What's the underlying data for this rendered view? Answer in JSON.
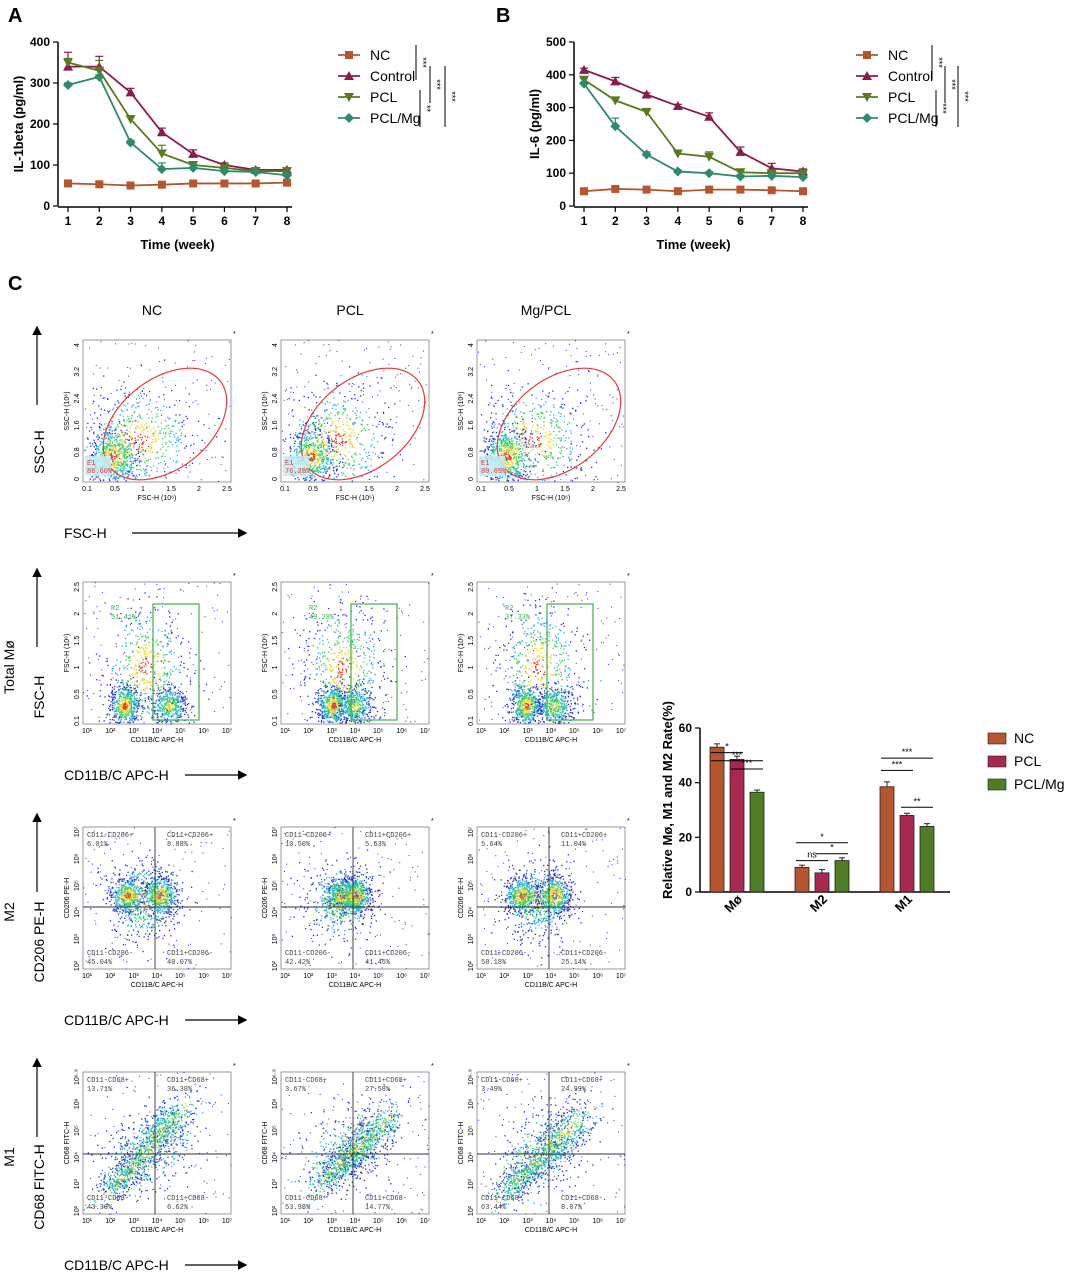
{
  "panels": {
    "A": "A",
    "B": "B",
    "C": "C"
  },
  "colors": {
    "NC": "#b5562e",
    "Control": "#8a1c4d",
    "PCL": "#5b7a1e",
    "PCL/Mg": "#2e8a69",
    "bar_NC": "#b5562e",
    "bar_PCL": "#a8284f",
    "bar_PCLMg": "#4e7d23",
    "gate_red": "#e23b3b",
    "gate_green": "#3cb04a"
  },
  "chart_data": [
    {
      "id": "A",
      "type": "line",
      "ylabel": "IL-1beta (pg/ml)",
      "xlabel": "Time (week)",
      "x": [
        1,
        2,
        3,
        4,
        5,
        6,
        7,
        8
      ],
      "ylim": [
        0,
        400
      ],
      "yticks": [
        0,
        100,
        200,
        300,
        400
      ],
      "series": [
        {
          "name": "NC",
          "values": [
            55,
            53,
            50,
            52,
            55,
            55,
            55,
            57
          ],
          "marker": "square",
          "err": [
            4,
            3,
            3,
            3,
            3,
            3,
            3,
            3
          ]
        },
        {
          "name": "Control",
          "values": [
            340,
            340,
            277,
            180,
            127,
            100,
            88,
            88
          ],
          "marker": "triangle-up",
          "err": [
            35,
            25,
            10,
            10,
            10,
            5,
            5,
            5
          ]
        },
        {
          "name": "PCL",
          "values": [
            350,
            330,
            212,
            128,
            100,
            93,
            85,
            85
          ],
          "marker": "triangle-down",
          "err": [
            10,
            25,
            8,
            20,
            8,
            5,
            5,
            5
          ]
        },
        {
          "name": "PCL/Mg",
          "values": [
            295,
            315,
            155,
            90,
            93,
            85,
            83,
            75
          ],
          "marker": "diamond",
          "err": [
            5,
            5,
            5,
            15,
            8,
            5,
            5,
            5
          ]
        }
      ],
      "sig": [
        "***",
        "***",
        "***",
        "**"
      ]
    },
    {
      "id": "B",
      "type": "line",
      "ylabel": "IL-6 (pg/ml)",
      "xlabel": "Time (week)",
      "x": [
        1,
        2,
        3,
        4,
        5,
        6,
        7,
        8
      ],
      "ylim": [
        0,
        500
      ],
      "yticks": [
        0,
        100,
        200,
        300,
        400,
        500
      ],
      "series": [
        {
          "name": "NC",
          "values": [
            45,
            52,
            50,
            45,
            50,
            50,
            48,
            45
          ],
          "marker": "square",
          "err": [
            3,
            3,
            3,
            3,
            3,
            3,
            3,
            3
          ]
        },
        {
          "name": "Control",
          "values": [
            415,
            380,
            340,
            305,
            272,
            165,
            115,
            105
          ],
          "marker": "triangle-up",
          "err": [
            5,
            12,
            5,
            5,
            12,
            15,
            15,
            8
          ]
        },
        {
          "name": "PCL",
          "values": [
            385,
            322,
            287,
            160,
            150,
            103,
            100,
            100
          ],
          "marker": "triangle-down",
          "err": [
            5,
            5,
            5,
            10,
            15,
            5,
            5,
            5
          ]
        },
        {
          "name": "PCL/Mg",
          "values": [
            373,
            243,
            157,
            105,
            100,
            90,
            92,
            88
          ],
          "marker": "diamond",
          "err": [
            5,
            25,
            8,
            5,
            5,
            5,
            5,
            5
          ]
        }
      ],
      "sig": [
        "***",
        "***",
        "***",
        "***"
      ]
    },
    {
      "id": "C-bar",
      "type": "bar",
      "ylabel": "Relative Mø, M1 and M2 Rate(%)",
      "categories": [
        "Mø",
        "M2",
        "M1"
      ],
      "ylim": [
        0,
        60
      ],
      "yticks": [
        0,
        20,
        40,
        60
      ],
      "series": [
        {
          "name": "NC",
          "values": [
            53,
            9,
            38.5
          ],
          "err": [
            1.2,
            0.8,
            1.8
          ]
        },
        {
          "name": "PCL",
          "values": [
            48.5,
            7,
            28
          ],
          "err": [
            1.2,
            1.2,
            0.8
          ]
        },
        {
          "name": "PCL/Mg",
          "values": [
            36.5,
            11.5,
            24
          ],
          "err": [
            0.8,
            1,
            1
          ]
        }
      ],
      "sig": {
        "Mo": [
          "*",
          "***",
          "***"
        ],
        "M2": [
          "ns",
          "*",
          "*"
        ],
        "M1": [
          "***",
          "**",
          "***"
        ]
      }
    }
  ],
  "flow": {
    "columns": [
      "NC",
      "PCL",
      "Mg/PCL"
    ],
    "rows": [
      {
        "row_label": "SSC-H",
        "x_axis": "FSC-H",
        "plot_x": "FSC-H (10⁶)",
        "plot_y": "SSC-H (10⁶)",
        "xticks": [
          "0.1",
          "0.5",
          "1",
          "1.5",
          "2",
          "2.5"
        ],
        "yticks": [
          "0",
          "0.8",
          "1.6",
          "2.4",
          "3.2",
          "4"
        ],
        "gate_name": "E1",
        "gates": [
          "86.60%",
          "76.28%",
          "80.69%"
        ]
      },
      {
        "row_label": "Total Mø",
        "row_label2": "FSC-H",
        "x_axis": "CD11B/C APC-H",
        "plot_x": "CD11B/C APC-H",
        "plot_y": "FSC-H (10⁶)",
        "xticks": [
          "10¹",
          "10²",
          "10³",
          "10⁴",
          "10⁵",
          "10⁶",
          "10⁷"
        ],
        "yticks": [
          "0.1",
          "0.5",
          "1",
          "1.5",
          "2",
          "2.5"
        ],
        "gate_name": "R2",
        "gates": [
          "51.41%",
          "49.28%",
          "37.33%"
        ]
      },
      {
        "row_label": "M2",
        "row_label2": "CD206 PE-H",
        "x_axis": "CD11B/C APC-H",
        "plot_x": "CD11B/C APC-H",
        "plot_y": "CD206 PE-H",
        "xticks": [
          "10¹",
          "10²",
          "10³",
          "10⁴",
          "10⁵",
          "10⁶",
          "10⁷"
        ],
        "yticks": [
          "10²",
          "10³",
          "10⁴",
          "10⁵",
          "10⁶",
          "10⁷"
        ],
        "quad_names": [
          "CD11-CD206+",
          "CD11+CD206+",
          "CD11-CD206-",
          "CD11+CD206-"
        ],
        "quads": [
          [
            "6.01%",
            "8.88%",
            "45.04%",
            "40.07%"
          ],
          [
            "10.50%",
            "5.63%",
            "42.42%",
            "41.45%"
          ],
          [
            "5.64%",
            "11.04%",
            "58.18%",
            "25.14%"
          ]
        ]
      },
      {
        "row_label": "M1",
        "row_label2": "CD68 FITC-H",
        "x_axis": "CD11B/C APC-H",
        "plot_x": "CD11B/C APC-H",
        "plot_y": "CD68 FITC-H",
        "xticks": [
          "10¹",
          "10²",
          "10³",
          "10⁴",
          "10⁵",
          "10⁶",
          "10⁷"
        ],
        "yticks": [
          "10²",
          "10³",
          "10⁴",
          "10⁵",
          "10⁶",
          "10⁶·⁸"
        ],
        "quad_names": [
          "CD11-CD68+",
          "CD11+CD68+",
          "CD11-CD68-",
          "CD11+CD68-"
        ],
        "quads": [
          [
            "13.71%",
            "36.38%",
            "43.30%",
            "6.62%"
          ],
          [
            "3.67%",
            "27.58%",
            "53.98%",
            "14.77%"
          ],
          [
            "3.49%",
            "24.99%",
            "63.44%",
            "8.07%"
          ]
        ]
      }
    ]
  }
}
